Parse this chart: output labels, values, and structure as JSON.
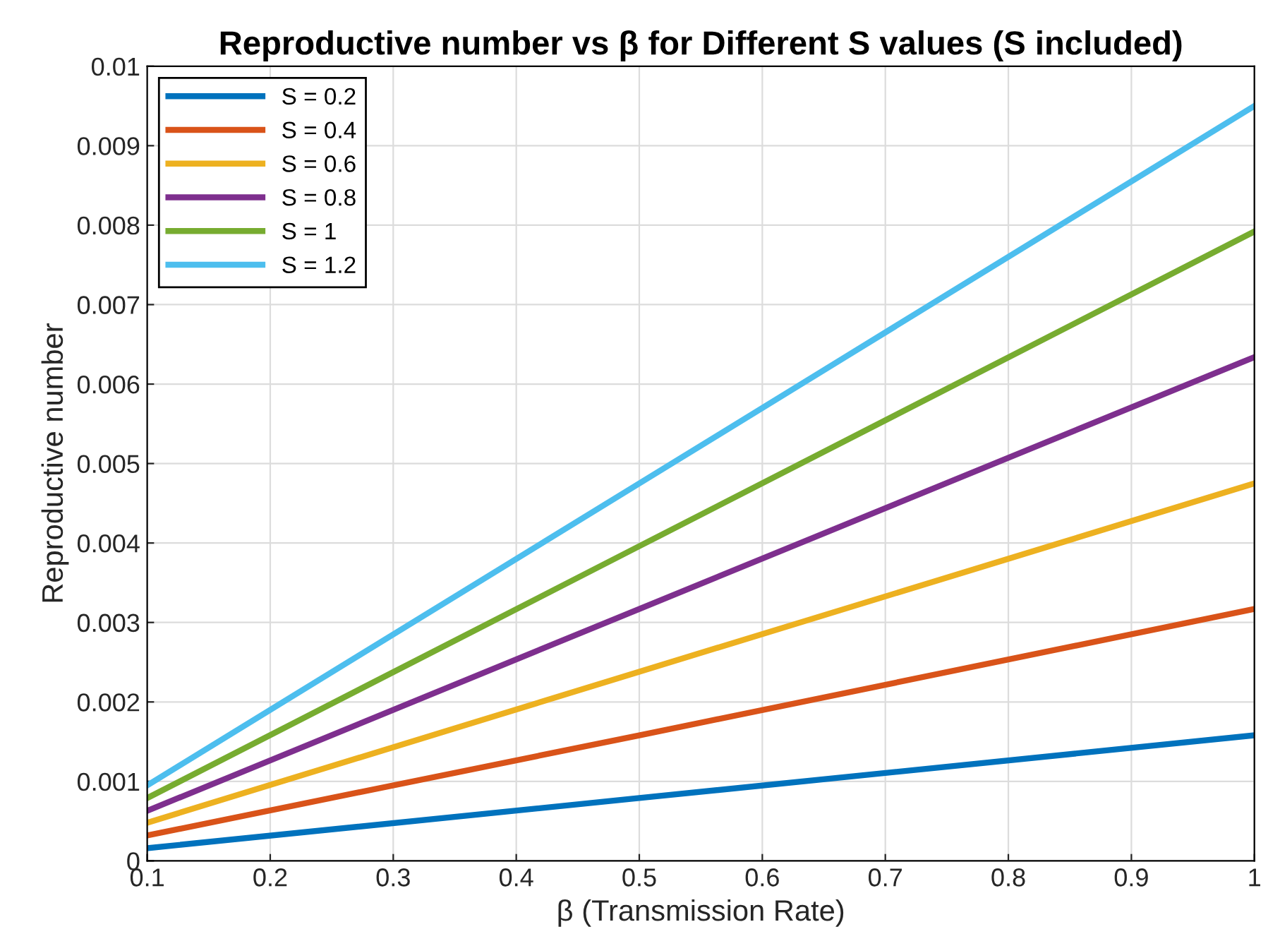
{
  "chart_data": {
    "type": "line",
    "title": "Reproductive number vs β for Different S values (S included)",
    "xlabel": "β (Transmission Rate)",
    "ylabel": "Reproductive number",
    "x": [
      0.1,
      0.5,
      1
    ],
    "series": [
      {
        "name": "S = 0.2",
        "color": "#0072bd",
        "values": [
          0.00016,
          0.00079,
          0.00158
        ]
      },
      {
        "name": "S = 0.4",
        "color": "#d95319",
        "values": [
          0.00032,
          0.00158,
          0.00317
        ]
      },
      {
        "name": "S = 0.6",
        "color": "#edb120",
        "values": [
          0.00048,
          0.00238,
          0.00475
        ]
      },
      {
        "name": "S = 0.8",
        "color": "#7e2f8e",
        "values": [
          0.00063,
          0.00317,
          0.00634
        ]
      },
      {
        "name": "S = 1",
        "color": "#77ac30",
        "values": [
          0.00079,
          0.00396,
          0.00792
        ]
      },
      {
        "name": "S = 1.2",
        "color": "#4dbeee",
        "values": [
          0.00095,
          0.00475,
          0.0095
        ]
      }
    ],
    "xlim": [
      0.1,
      1
    ],
    "ylim": [
      0,
      0.01
    ],
    "xticks": [
      0.1,
      0.2,
      0.3,
      0.4,
      0.5,
      0.6,
      0.7,
      0.8,
      0.9,
      1
    ],
    "yticks": [
      0,
      0.001,
      0.002,
      0.003,
      0.004,
      0.005,
      0.006,
      0.007,
      0.008,
      0.009,
      0.01
    ],
    "grid": true,
    "legend": "top left",
    "line_style": "solid"
  }
}
